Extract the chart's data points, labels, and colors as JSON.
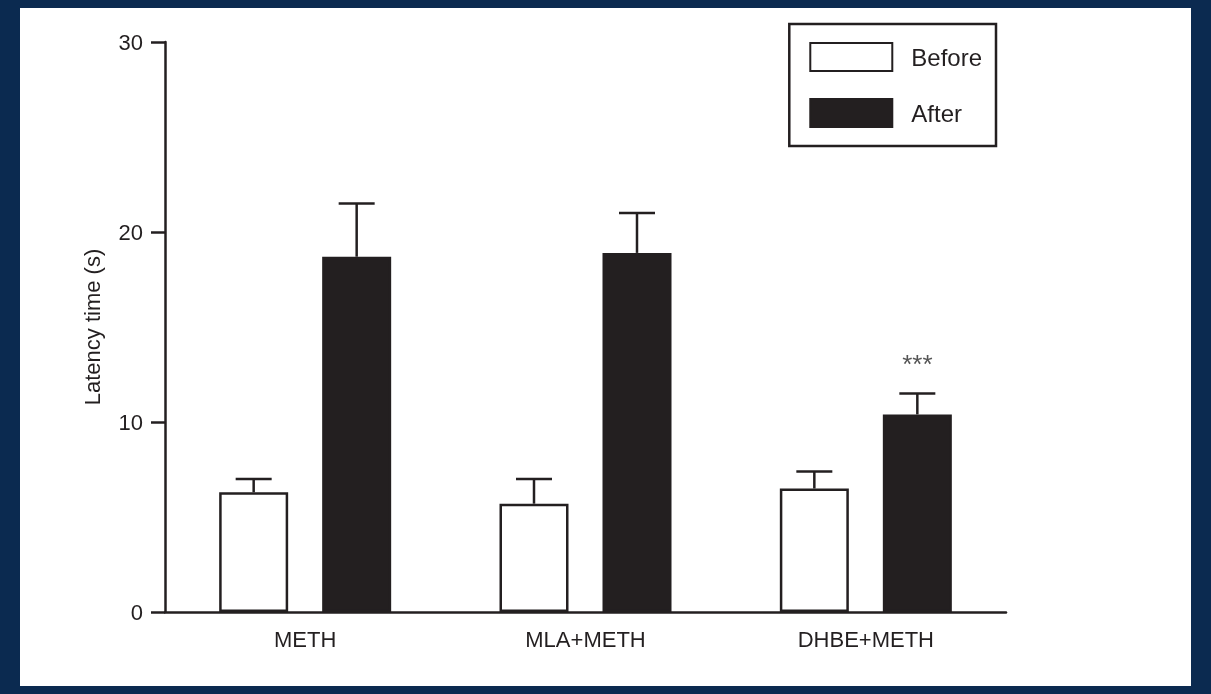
{
  "chart_data": {
    "type": "bar",
    "ylabel": "Latency time (s)",
    "categories": [
      "METH",
      "MLA+METH",
      "DHBE+METH"
    ],
    "series": [
      {
        "name": "Before",
        "color": "#ffffff",
        "values": [
          6.3,
          5.7,
          6.5
        ],
        "errors": [
          [
            6.3,
            7.0
          ],
          [
            5.7,
            7.0
          ],
          [
            6.5,
            7.4
          ]
        ]
      },
      {
        "name": "After",
        "color": "#231f20",
        "values": [
          18.7,
          18.9,
          10.4
        ],
        "errors": [
          [
            18.7,
            21.5
          ],
          [
            18.9,
            21.0
          ],
          [
            10.4,
            11.5
          ]
        ]
      }
    ],
    "ylim": [
      0,
      30
    ],
    "yticks": [
      0,
      10,
      20,
      30
    ],
    "grid": false,
    "legend": "top right",
    "annotations": [
      "***"
    ]
  }
}
